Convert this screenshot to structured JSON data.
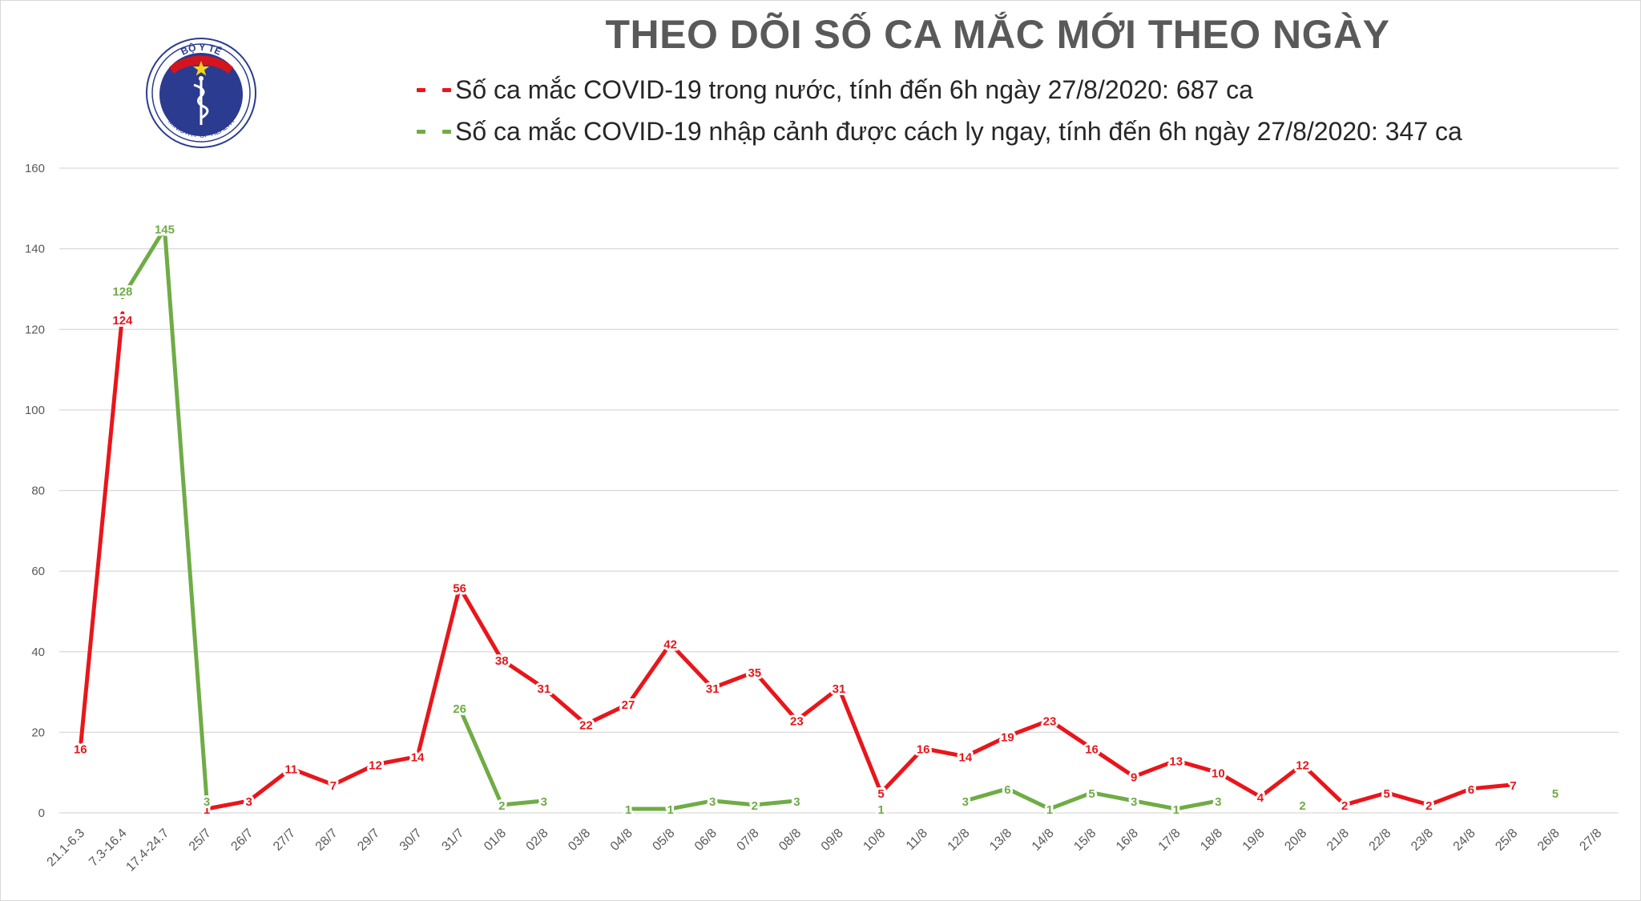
{
  "page": {
    "title": "THEO DÕI SỐ CA MẮC MỚI THEO NGÀY",
    "logo": {
      "top_text": "BỘ Y TẾ",
      "bottom_text": "MINISTRY OF HEALTH"
    }
  },
  "chart_data": {
    "type": "line",
    "title": "THEO DÕI SỐ CA MẮC MỚI THEO NGÀY",
    "xlabel": "",
    "ylabel": "",
    "ylim": [
      0,
      160
    ],
    "yticks": [
      "0",
      "20",
      "40",
      "60",
      "80",
      "100",
      "120",
      "140",
      "160"
    ],
    "grid": true,
    "legend_position": "top",
    "categories": [
      "21.1-6.3",
      "7.3-16.4",
      "17.4-24.7",
      "25/7",
      "26/7",
      "27/7",
      "28/7",
      "29/7",
      "30/7",
      "31/7",
      "01/8",
      "02/8",
      "03/8",
      "04/8",
      "05/8",
      "06/8",
      "07/8",
      "08/8",
      "09/8",
      "10/8",
      "11/8",
      "12/8",
      "13/8",
      "14/8",
      "15/8",
      "16/8",
      "17/8",
      "18/8",
      "19/8",
      "20/8",
      "21/8",
      "22/8",
      "23/8",
      "24/8",
      "25/8",
      "26/8",
      "27/8"
    ],
    "series": [
      {
        "name": "Số ca mắc COVID-19 trong nước, tính đến 6h ngày 27/8/2020: 687 ca",
        "color": "#e8161b",
        "values": [
          16,
          124,
          null,
          1,
          3,
          11,
          7,
          12,
          14,
          56,
          38,
          31,
          22,
          27,
          42,
          31,
          35,
          23,
          31,
          5,
          16,
          14,
          19,
          23,
          16,
          9,
          13,
          10,
          4,
          12,
          2,
          5,
          2,
          6,
          7,
          null,
          null
        ]
      },
      {
        "name": "Số ca mắc COVID-19 nhập cảnh được cách ly ngay, tính đến 6h ngày 27/8/2020: 347 ca",
        "color": "#6fac46",
        "values": [
          null,
          128,
          145,
          3,
          null,
          null,
          null,
          null,
          null,
          26,
          2,
          3,
          null,
          1,
          1,
          3,
          2,
          3,
          null,
          1,
          null,
          3,
          6,
          1,
          5,
          3,
          1,
          3,
          null,
          2,
          null,
          null,
          null,
          null,
          null,
          5,
          null
        ]
      }
    ]
  }
}
